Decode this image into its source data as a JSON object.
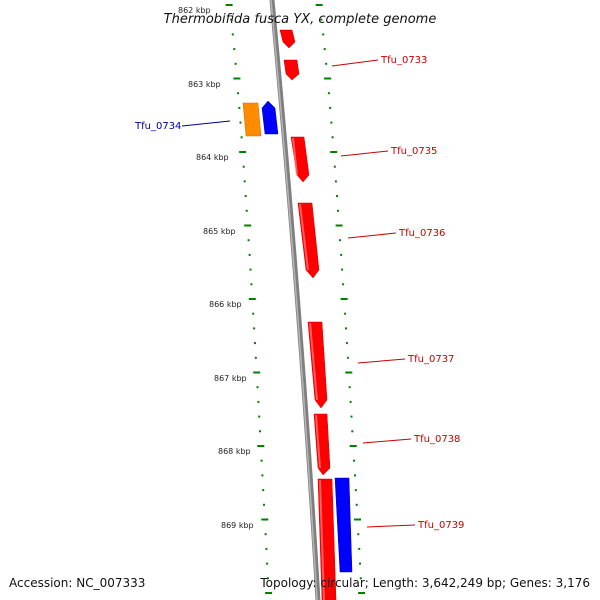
{
  "title": "Thermobifida fusca YX, complete genome",
  "accession": "Accession: NC_007333",
  "topology": "Topology: circular; Length: 3,642,249 bp; Genes: 3,176",
  "colors": {
    "forward": "#ff0000",
    "reverse_blue": "#0000ff",
    "reverse_orange": "#ff8c00",
    "backbone": "#808080",
    "ticks": "#008000",
    "label_red": "#cc0000",
    "label_blue": "#000099"
  },
  "ruler": {
    "unit": "kbp",
    "labels": [
      "862 kbp",
      "863 kbp",
      "864 kbp",
      "865 kbp",
      "866 kbp",
      "867 kbp",
      "868 kbp",
      "869 kbp"
    ]
  },
  "genes": [
    {
      "name": "Tfu_0733",
      "strand": "forward",
      "color": "red",
      "labeled": true
    },
    {
      "name": "Tfu_0734",
      "strand": "reverse",
      "color": "blue",
      "labeled": true
    },
    {
      "name": "Tfu_0735",
      "strand": "forward",
      "color": "red",
      "labeled": true
    },
    {
      "name": "Tfu_0736",
      "strand": "forward",
      "color": "red",
      "labeled": true
    },
    {
      "name": "Tfu_0737",
      "strand": "forward",
      "color": "red",
      "labeled": true
    },
    {
      "name": "Tfu_0738",
      "strand": "forward",
      "color": "red",
      "labeled": true
    },
    {
      "name": "Tfu_0739",
      "strand": "forward",
      "color": "red",
      "labeled": true
    }
  ]
}
